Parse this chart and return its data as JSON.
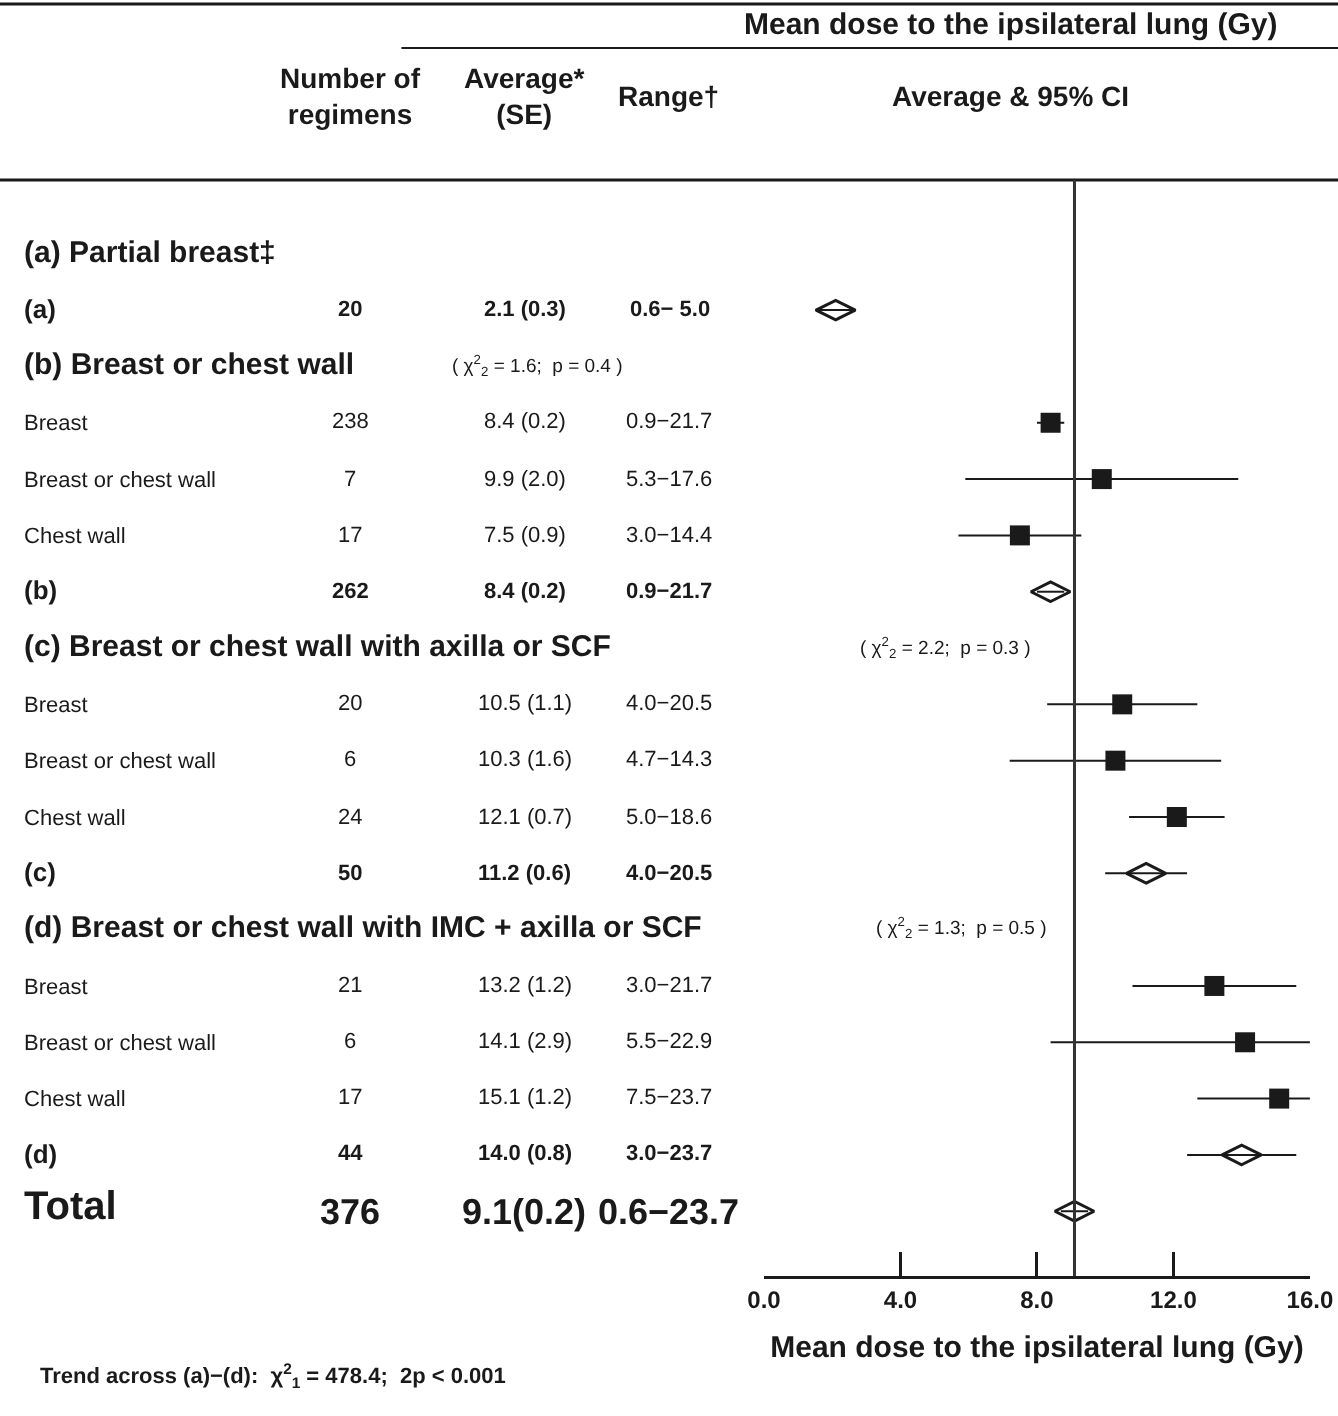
{
  "chart_data": {
    "type": "scatter",
    "orientation": "horizontal",
    "xlabel": "Mean dose to the ipsilateral lung (Gy)",
    "categories": [
      "(a) Partial breast‡",
      "(a)",
      "(b) Breast or chest wall",
      "Breast",
      "Breast or chest wall",
      "Chest wall",
      "(b)",
      "(c) Breast or chest wall with axilla or SCF",
      "Breast",
      "Breast or chest wall",
      "Chest wall",
      "(c)",
      "(d) Breast or chest wall with IMC + axilla or SCF",
      "Breast",
      "Breast or chest wall",
      "Chest wall",
      "(d)",
      "Total"
    ],
    "series": [
      {
        "marker": "square",
        "color": "#1a1a1a",
        "values": [
          null,
          null,
          null,
          8.4,
          9.9,
          7.5,
          null,
          null,
          10.5,
          10.3,
          12.1,
          null,
          null,
          13.2,
          14.1,
          15.1,
          null,
          null
        ],
        "errors": [
          null,
          null,
          null,
          [
            8.0,
            8.8
          ],
          [
            5.9,
            13.9
          ],
          [
            5.7,
            9.3
          ],
          null,
          null,
          [
            8.3,
            12.7
          ],
          [
            7.2,
            13.4
          ],
          [
            10.7,
            13.5
          ],
          null,
          null,
          [
            10.8,
            15.6
          ],
          [
            8.4,
            16.0
          ],
          [
            12.7,
            16.0
          ],
          null,
          null
        ]
      },
      {
        "marker": "diamond",
        "color": "#1a1a1a",
        "values": [
          null,
          2.1,
          null,
          null,
          null,
          null,
          8.4,
          null,
          null,
          null,
          null,
          11.2,
          null,
          null,
          null,
          null,
          14.0,
          9.1
        ],
        "errors": [
          null,
          [
            1.5,
            2.7
          ],
          null,
          null,
          null,
          null,
          [
            8.0,
            8.8
          ],
          null,
          null,
          null,
          null,
          [
            10.0,
            12.4
          ],
          null,
          null,
          null,
          null,
          [
            12.4,
            15.6
          ],
          [
            8.7,
            9.5
          ]
        ]
      }
    ],
    "xlim": [
      0,
      16
    ],
    "xticks": [
      {
        "value": 0,
        "label": "0.0"
      },
      {
        "value": 4,
        "label": "4.0"
      },
      {
        "value": 8,
        "label": "8.0"
      },
      {
        "value": 12,
        "label": "12.0"
      },
      {
        "value": 16,
        "label": "16.0"
      }
    ],
    "ref_lines": [
      {
        "axis": "x",
        "value": 9.1,
        "color": "#333333"
      }
    ],
    "grid": false,
    "annotations": [
      "Mean dose to the ipsilateral lung (Gy)",
      "Number of\nregimens",
      "Average*\n(SE)",
      "Range†",
      "Average & 95% CI",
      "( χ$^{2}$$_{2}$ = 1.6;  p = 0.4 )",
      "( χ$^{2}$$_{2}$ = 2.2;  p = 0.3 )",
      "( χ$^{2}$$_{2}$ = 1.3;  p = 0.5 )",
      "Trend across (a)−(d):  χ$^{2}$$_{1}$ = 478.4;  2p < 0.001",
      "20",
      "2.1 (0.3)",
      "0.6− 5.0",
      "238",
      "8.4 (0.2)",
      "0.9−21.7",
      "7",
      "9.9 (2.0)",
      "5.3−17.6",
      "17",
      "7.5 (0.9)",
      "3.0−14.4",
      "262",
      "8.4 (0.2)",
      "0.9−21.7",
      "20",
      "10.5 (1.1)",
      "4.0−20.5",
      "6",
      "10.3 (1.6)",
      "4.7−14.3",
      "24",
      "12.1 (0.7)",
      "5.0−18.6",
      "50",
      "11.2 (0.6)",
      "4.0−20.5",
      "21",
      "13.2 (1.2)",
      "3.0−21.7",
      "6",
      "14.1 (2.9)",
      "5.5−22.9",
      "17",
      "15.1 (1.2)",
      "7.5−23.7",
      "44",
      "14.0 (0.8)",
      "3.0−23.7",
      "376",
      "9.1(0.2)",
      "0.6−23.7"
    ]
  }
}
